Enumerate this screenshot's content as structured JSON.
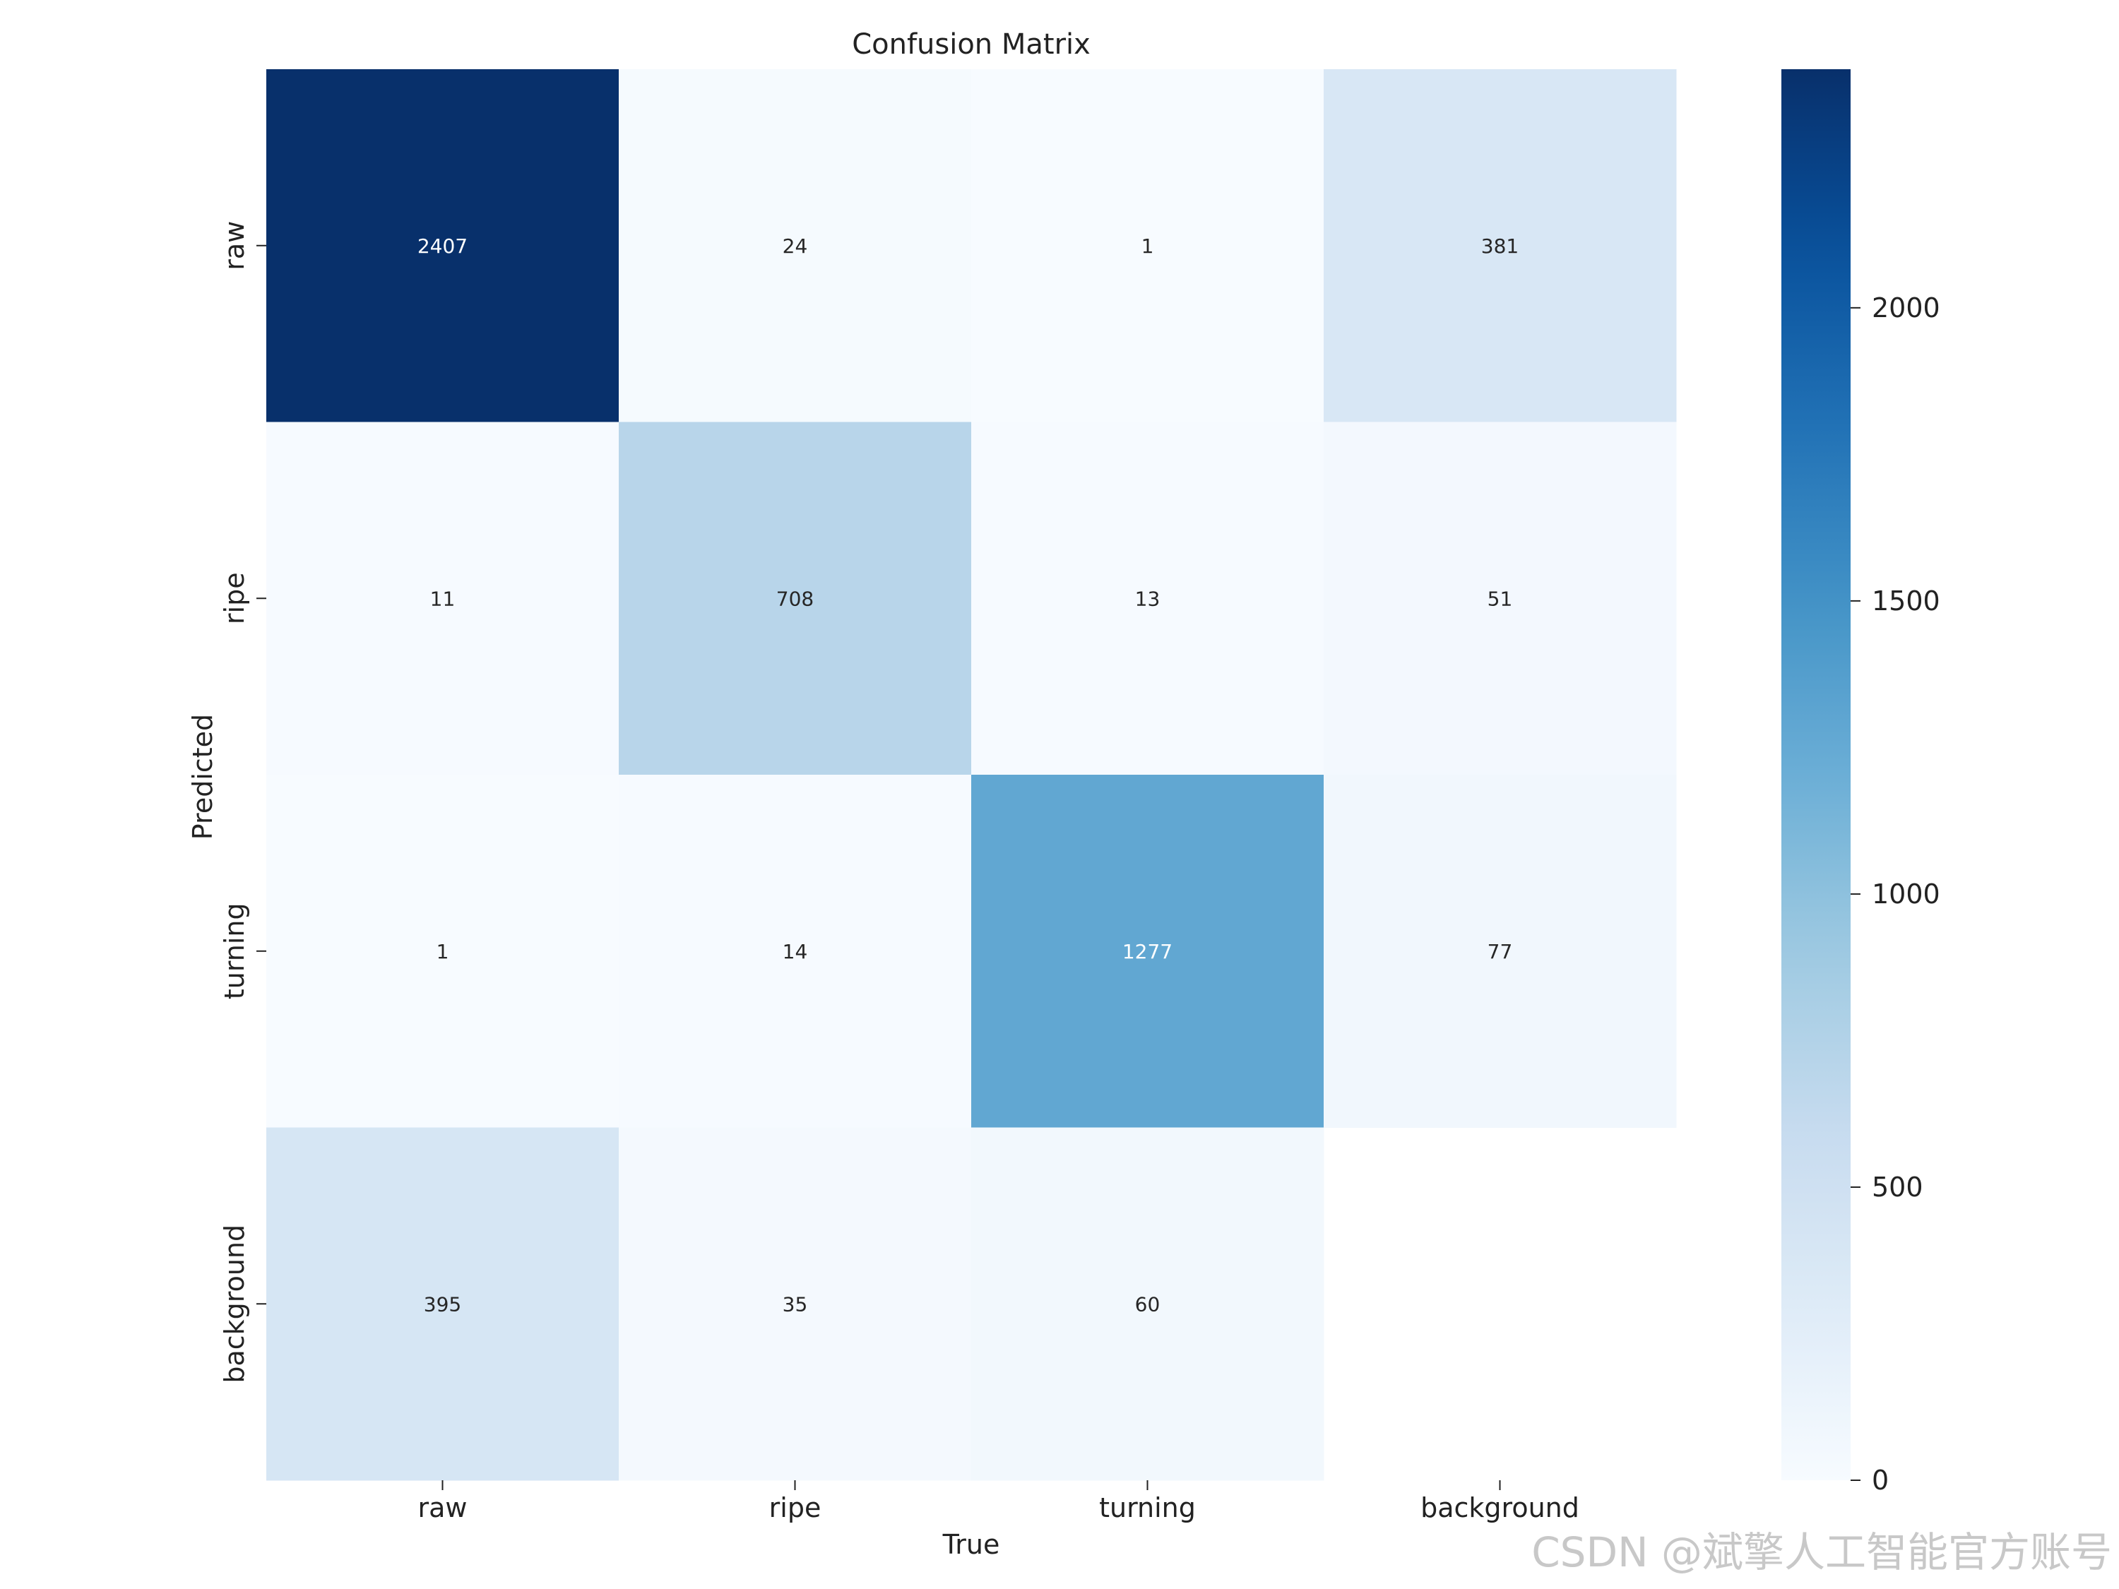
{
  "chart_data": {
    "type": "heatmap",
    "title": "Confusion Matrix",
    "xlabel": "True",
    "ylabel": "Predicted",
    "x_categories": [
      "raw",
      "ripe",
      "turning",
      "background"
    ],
    "y_categories": [
      "raw",
      "ripe",
      "turning",
      "background"
    ],
    "values": [
      [
        2407,
        24,
        1,
        381
      ],
      [
        11,
        708,
        13,
        51
      ],
      [
        1,
        14,
        1277,
        77
      ],
      [
        395,
        35,
        60,
        null
      ]
    ],
    "colorbar": {
      "range": [
        0,
        2407
      ],
      "ticks": [
        0,
        500,
        1000,
        1500,
        2000
      ],
      "colormap": "Blues"
    }
  },
  "watermark": "CSDN @斌擎人工智能官方账号"
}
